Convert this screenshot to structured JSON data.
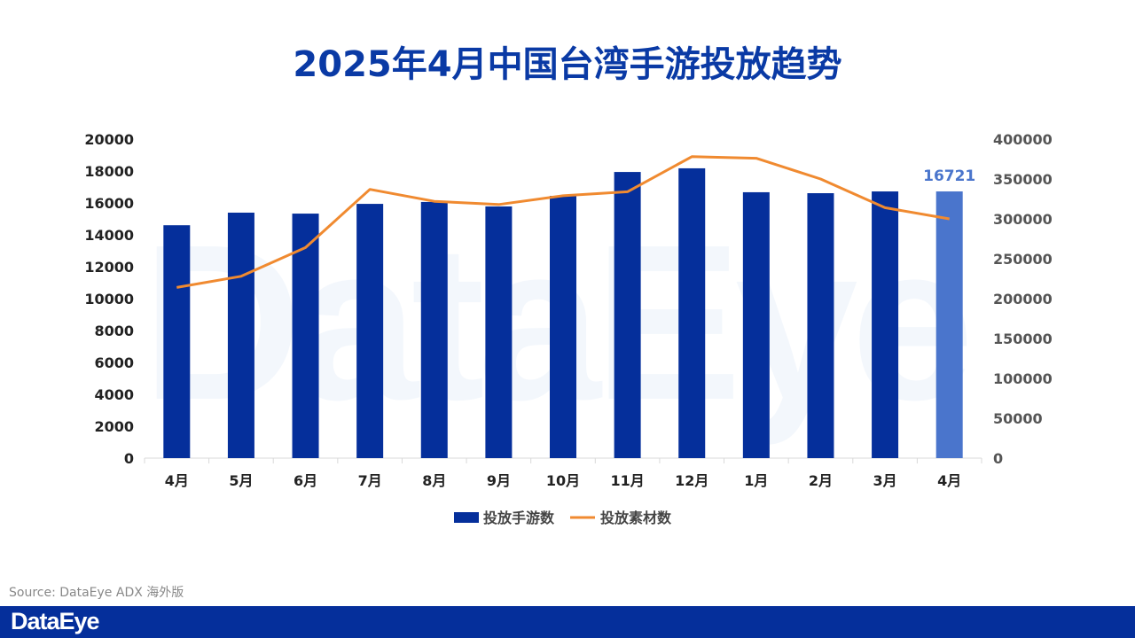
{
  "footer": {
    "source": "Source: DataEye ADX 海外版",
    "logo": "DataEye"
  },
  "watermark": "DataEye",
  "colors": {
    "bar": "#052f9b",
    "bar_highlight": "#4a75cc",
    "line": "#f08a30",
    "title": "#0a3aa5"
  },
  "chart_data": {
    "type": "bar+line",
    "title": "2025年4月中国台湾手游投放趋势",
    "categories": [
      "4月",
      "5月",
      "6月",
      "7月",
      "8月",
      "9月",
      "10月",
      "11月",
      "12月",
      "1月",
      "2月",
      "3月",
      "4月"
    ],
    "series": [
      {
        "name": "投放手游数",
        "type": "bar",
        "axis": "left",
        "values": [
          14600,
          15390,
          15330,
          15940,
          16060,
          15780,
          16440,
          17940,
          18170,
          16670,
          16610,
          16720,
          16721
        ]
      },
      {
        "name": "投放素材数",
        "type": "line",
        "axis": "right",
        "values": [
          214000,
          228000,
          264000,
          337000,
          322000,
          318000,
          329000,
          334000,
          378000,
          376000,
          350000,
          314000,
          300000
        ]
      }
    ],
    "left_axis": {
      "ylim": [
        0,
        20000
      ],
      "ticks": [
        "0",
        "2000",
        "4000",
        "6000",
        "8000",
        "10000",
        "12000",
        "14000",
        "16000",
        "18000",
        "20000"
      ]
    },
    "right_axis": {
      "ylim": [
        0,
        400000
      ],
      "ticks": [
        "0",
        "50000",
        "100000",
        "150000",
        "200000",
        "250000",
        "300000",
        "350000",
        "400000"
      ]
    },
    "annotations": [
      {
        "category_index": 12,
        "label": "16721"
      }
    ],
    "legend": {
      "position": "bottom",
      "entries": [
        "投放手游数",
        "投放素材数"
      ]
    },
    "grid": false
  }
}
